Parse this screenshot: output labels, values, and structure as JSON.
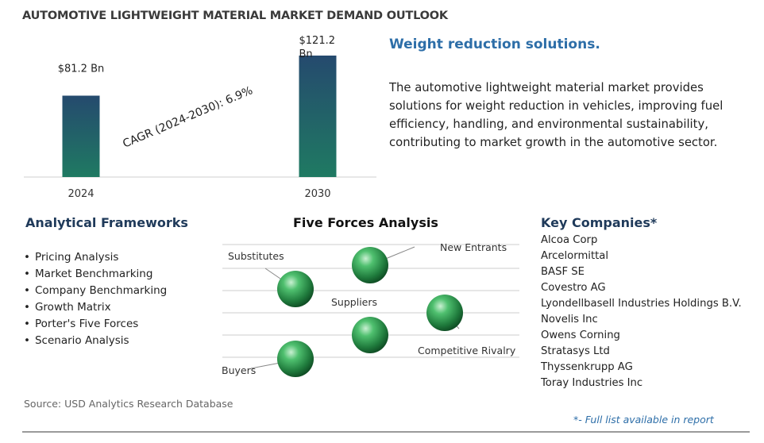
{
  "title": "AUTOMOTIVE LIGHTWEIGHT MATERIAL MARKET DEMAND OUTLOOK",
  "chart_data": {
    "type": "bar",
    "categories": [
      "2024",
      "2030"
    ],
    "values": [
      81.2,
      121.2
    ],
    "data_labels": [
      "$81.2 Bn",
      "$121.2 Bn"
    ],
    "annotation": "CAGR (2024-2030):  6.9%",
    "bar_color_top": "#254a6e",
    "bar_color_bottom": "#1f7a62"
  },
  "headline": "Weight reduction solutions.",
  "summary": "The automotive lightweight material market provides solutions for weight reduction in vehicles, improving fuel efficiency, handling, and environmental sustainability, contributing to market growth in the automotive sector.",
  "frameworks": {
    "heading": "Analytical Frameworks",
    "items": [
      "Pricing Analysis",
      "Market Benchmarking",
      "Company Benchmarking",
      "Growth Matrix",
      "Porter's Five Forces",
      "Scenario Analysis"
    ]
  },
  "five_forces": {
    "heading": "Five Forces Analysis",
    "labels": {
      "new_entrants": "New Entrants",
      "substitutes": "Substitutes",
      "suppliers": "Suppliers",
      "competitive_rivalry": "Competitive Rivalry",
      "buyers": "Buyers"
    },
    "sphere_color": "#2e9a55"
  },
  "companies": {
    "heading": "Key Companies*",
    "items": [
      "Alcoa Corp",
      "Arcelormittal",
      "BASF SE",
      "Covestro AG",
      "Lyondellbasell Industries Holdings B.V.",
      "Novelis Inc",
      "Owens Corning",
      "Stratasys Ltd",
      "Thyssenkrupp AG",
      "Toray Industries Inc"
    ]
  },
  "source": "Source: USD Analytics Research Database",
  "footnote": "*- Full list available in report"
}
